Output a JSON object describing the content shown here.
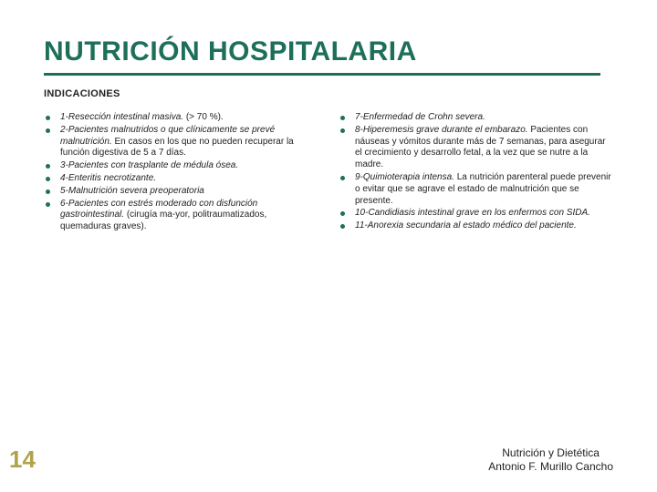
{
  "title": "NUTRICIÓN HOSPITALARIA",
  "subtitle": "INDICACIONES",
  "colors": {
    "accent": "#1d6f5a",
    "page_num": "#b0a24a",
    "text": "#222222",
    "background": "#ffffff"
  },
  "typography": {
    "title_fontsize": 30,
    "subtitle_fontsize": 11,
    "body_fontsize": 10,
    "pagenum_fontsize": 26,
    "footer_fontsize": 12
  },
  "left_items": [
    {
      "lead": "1-Resección intestinal masiva.",
      "rest": " (> 70 %)."
    },
    {
      "lead": "2-Pacientes malnutridos o que clínicamente se prevé malnutrición.",
      "rest": " En casos en los que no pueden recuperar la función digestiva de 5 a 7 días."
    },
    {
      "lead": "3-Pacientes con trasplante de médula ósea.",
      "rest": ""
    },
    {
      "lead": "4-Enteritis necrotizante.",
      "rest": ""
    },
    {
      "lead": "5-Malnutrición severa preoperatoria",
      "rest": ""
    },
    {
      "lead": "6-Pacientes con estrés moderado con disfunción gastrointestinal.",
      "rest": " (cirugía ma-yor, politraumatizados, quemaduras graves)."
    }
  ],
  "right_items": [
    {
      "lead": "7-Enfermedad de Crohn severa.",
      "rest": ""
    },
    {
      "lead": "8-Hiperemesis grave durante el embarazo.",
      "rest": " Pacientes con náuseas y vómitos durante más de 7 semanas, para asegurar el crecimiento y desarrollo fetal, a la vez que se nutre a la madre."
    },
    {
      "lead": "9-Quimioterapia intensa.",
      "rest": " La nutrición parenteral puede prevenir o evitar que se agrave el estado de malnutrición que se presente."
    },
    {
      "lead": "10-Candidiasis intestinal grave en los enfermos con SIDA.",
      "rest": ""
    },
    {
      "lead": "11-Anorexia secundaria al estado médico del paciente.",
      "rest": ""
    }
  ],
  "page_number": "14",
  "footer_line1": "Nutrición y Dietética",
  "footer_line2": "Antonio F. Murillo Cancho"
}
